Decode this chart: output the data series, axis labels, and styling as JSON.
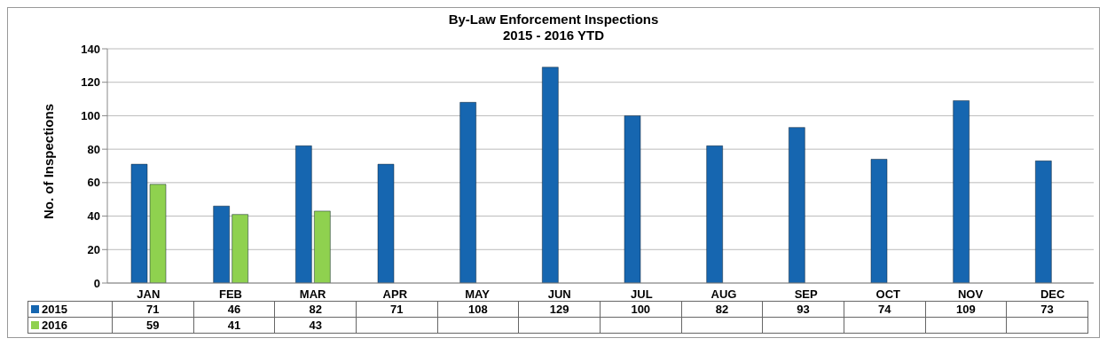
{
  "chart_data": {
    "type": "bar",
    "title": "By-Law Enforcement Inspections",
    "subtitle": "2015 - 2016 YTD",
    "ylabel": "No. of Inspections",
    "categories": [
      "JAN",
      "FEB",
      "MAR",
      "APR",
      "MAY",
      "JUN",
      "JUL",
      "AUG",
      "SEP",
      "OCT",
      "NOV",
      "DEC"
    ],
    "series": [
      {
        "name": "2015",
        "color": "#1666b0",
        "values": [
          71,
          46,
          82,
          71,
          108,
          129,
          100,
          82,
          93,
          74,
          109,
          73
        ]
      },
      {
        "name": "2016",
        "color": "#8fd14f",
        "values": [
          59,
          41,
          43,
          null,
          null,
          null,
          null,
          null,
          null,
          null,
          null,
          null
        ]
      }
    ],
    "ylim": [
      0,
      140
    ],
    "yticks": [
      0,
      20,
      40,
      60,
      80,
      100,
      120,
      140
    ],
    "grid": "y",
    "legend": "bottom",
    "data_labels": true
  }
}
